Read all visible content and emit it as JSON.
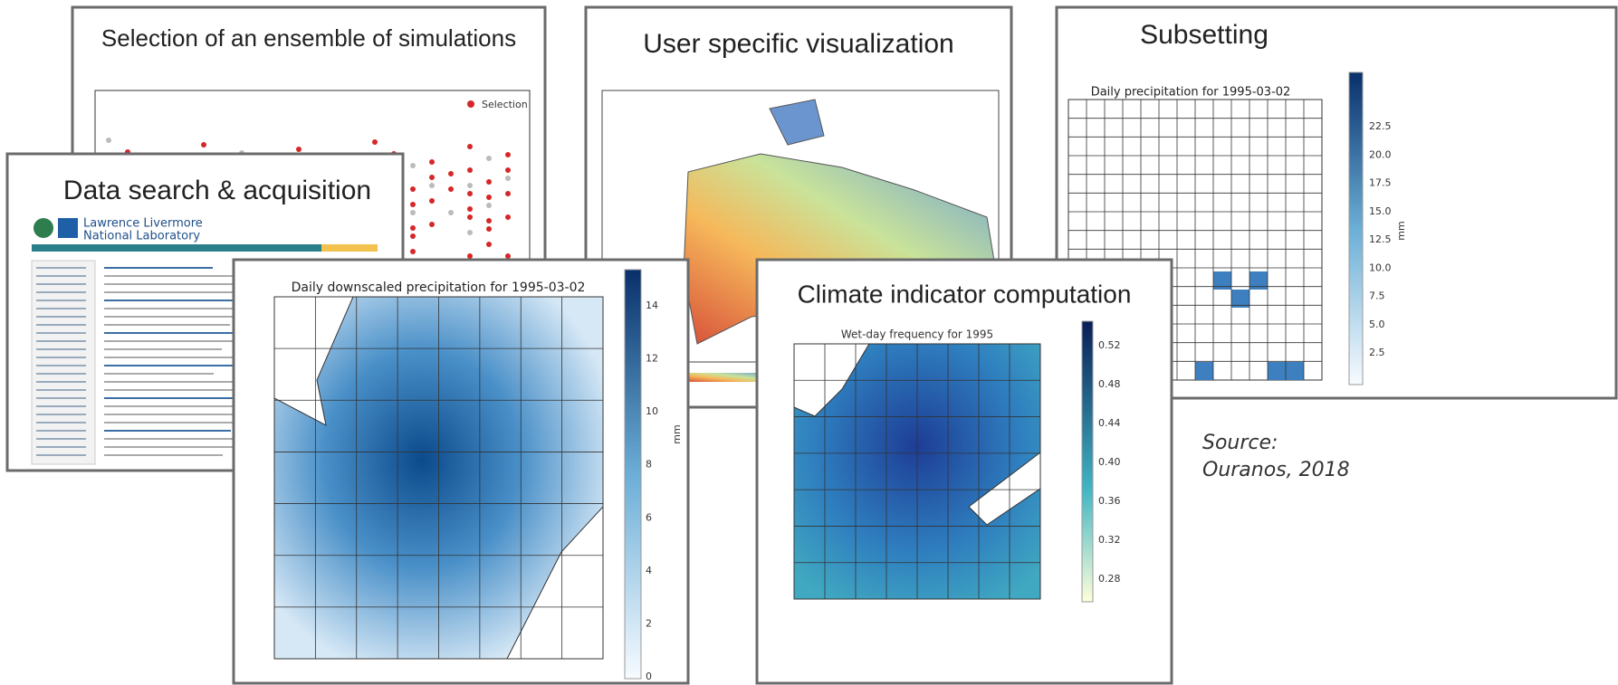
{
  "panels": {
    "selection": {
      "title": "Selection of an ensemble of simulations",
      "legend": "Selection"
    },
    "search": {
      "title": "Data search & acquisition",
      "logo": [
        "Lawrence Livermore",
        "National Laboratory"
      ]
    },
    "visualization": {
      "title": "User specific visualization"
    },
    "subsetting": {
      "title": "Subsetting",
      "plot_title": "Daily precipitation for 1995-03-02",
      "colorbar_ticks": [
        "2.5",
        "5.0",
        "7.5",
        "10.0",
        "12.5",
        "15.0",
        "17.5",
        "20.0",
        "22.5"
      ],
      "unit": "mm"
    },
    "downscaled": {
      "plot_title": "Daily downscaled precipitation for 1995-03-02",
      "colorbar_ticks": [
        "0",
        "2",
        "4",
        "6",
        "8",
        "10",
        "12",
        "14"
      ],
      "unit": "mm"
    },
    "indicator": {
      "title": "Climate indicator computation",
      "plot_title": "Wet-day frequency for 1995",
      "colorbar_ticks": [
        "0.28",
        "0.32",
        "0.36",
        "0.40",
        "0.44",
        "0.48",
        "0.52"
      ]
    }
  },
  "source": [
    "Source:",
    "Ouranos, 2018"
  ]
}
